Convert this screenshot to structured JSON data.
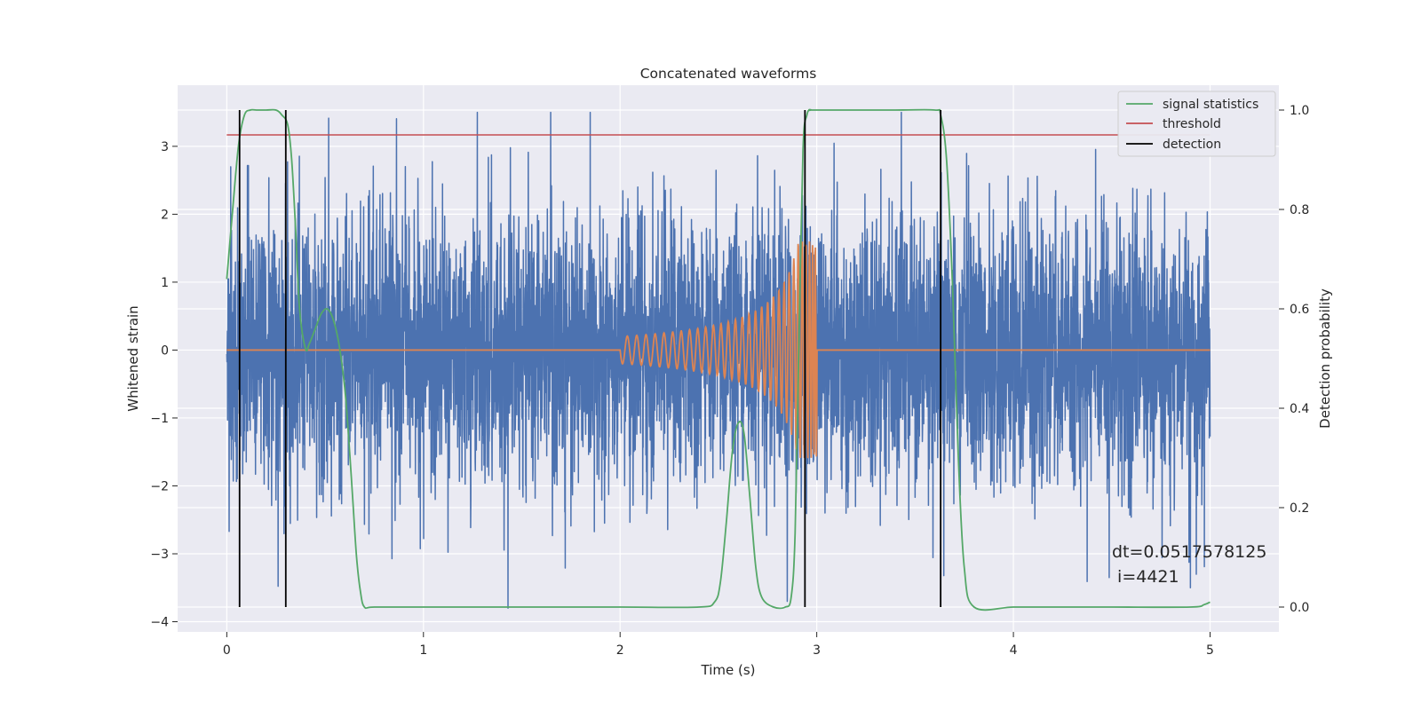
{
  "chart_data": {
    "type": "line",
    "title": "Concatenated waveforms",
    "xlabel": "Time (s)",
    "ylabel": "Whitened strain",
    "y2label": "Detection probability",
    "xlim": [
      -0.25,
      5.35
    ],
    "ylim": [
      -4.15,
      3.9
    ],
    "y2lim": [
      -0.05,
      1.05
    ],
    "x_ticks": [
      "0",
      "1",
      "2",
      "3",
      "4",
      "5"
    ],
    "x_tick_values": [
      0,
      1,
      2,
      3,
      4,
      5
    ],
    "y_ticks": [
      "−4",
      "−3",
      "−2",
      "−1",
      "0",
      "1",
      "2",
      "3"
    ],
    "y_tick_values": [
      -4,
      -3,
      -2,
      -1,
      0,
      1,
      2,
      3
    ],
    "y2_ticks": [
      "0.0",
      "0.2",
      "0.4",
      "0.6",
      "0.8",
      "1.0"
    ],
    "y2_tick_values": [
      0.0,
      0.2,
      0.4,
      0.6,
      0.8,
      1.0
    ],
    "grid": true,
    "legend_position": "top-right",
    "legend": [
      {
        "label": "signal statistics",
        "color": "#55a868"
      },
      {
        "label": "threshold",
        "color": "#c44e52"
      },
      {
        "label": "detection",
        "color": "#000000"
      }
    ],
    "series": [
      {
        "role": "noise",
        "axis": "left",
        "color": "#4c72b0",
        "x_range": [
          0,
          5
        ],
        "typical_amplitude": 1.0,
        "extreme_min": -3.8,
        "extreme_max": 3.5
      },
      {
        "role": "chirp",
        "axis": "left",
        "color": "#dd8452",
        "x_range": [
          0,
          5
        ],
        "chirp_x_range": [
          2.0,
          3.0
        ],
        "start_amplitude": 0.2,
        "peak_amplitude": 1.6,
        "peak_x": 2.99
      },
      {
        "name": "signal statistics",
        "axis": "right",
        "color": "#55a868",
        "x": [
          0,
          0.03,
          0.06,
          0.09,
          0.12,
          0.15,
          0.2,
          0.25,
          0.28,
          0.31,
          0.33,
          0.35,
          0.37,
          0.4,
          0.42,
          0.45,
          0.48,
          0.51,
          0.54,
          0.57,
          0.6,
          0.62,
          0.64,
          0.66,
          0.68,
          0.7,
          0.75,
          1.0,
          1.5,
          2.0,
          2.4,
          2.48,
          2.51,
          2.54,
          2.57,
          2.6,
          2.63,
          2.66,
          2.69,
          2.72,
          2.78,
          2.84,
          2.87,
          2.89,
          2.91,
          2.93,
          2.95,
          2.97,
          3.0,
          3.4,
          3.6,
          3.63,
          3.66,
          3.69,
          3.72,
          3.75,
          3.8,
          4.0,
          4.2,
          4.5,
          4.9,
          4.97,
          5.0
        ],
        "y": [
          0.66,
          0.8,
          0.93,
          0.99,
          1.0,
          1.0,
          1.0,
          1.0,
          0.99,
          0.97,
          0.9,
          0.76,
          0.6,
          0.52,
          0.53,
          0.56,
          0.59,
          0.6,
          0.58,
          0.53,
          0.44,
          0.34,
          0.22,
          0.1,
          0.03,
          0.0,
          0.0,
          0.0,
          0.0,
          0.0,
          0.0,
          0.01,
          0.05,
          0.17,
          0.31,
          0.37,
          0.35,
          0.22,
          0.08,
          0.02,
          0.0,
          0.0,
          0.02,
          0.15,
          0.55,
          0.92,
          0.99,
          1.0,
          1.0,
          1.0,
          1.0,
          0.99,
          0.9,
          0.65,
          0.3,
          0.08,
          0.0,
          0.0,
          0.0,
          0.0,
          0.0,
          0.005,
          0.01
        ]
      },
      {
        "name": "threshold",
        "axis": "right",
        "color": "#c44e52",
        "x": [
          0,
          5
        ],
        "y": [
          0.95,
          0.95
        ]
      },
      {
        "name": "detection",
        "axis": "right",
        "color": "#000000",
        "type": "vlines",
        "x": [
          0.065,
          0.3,
          2.94,
          3.63
        ],
        "y_range": [
          0.0,
          1.0
        ]
      }
    ],
    "annotation": "dt=0.0517578125\n i=4421"
  }
}
